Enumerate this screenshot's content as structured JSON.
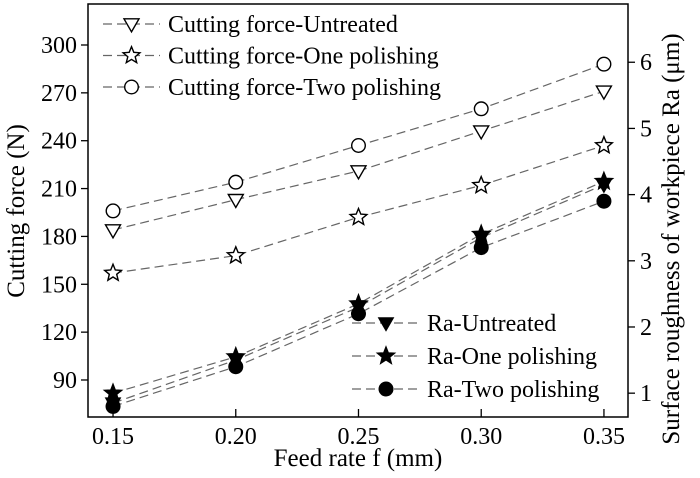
{
  "chart_data": {
    "type": "line",
    "title": "",
    "xlabel": "Feed rate f (mm)",
    "ylabel_left": "Cutting force (N)",
    "ylabel_right": "Surface roughness of workpiece Ra (μm)",
    "x": [
      0.15,
      0.2,
      0.25,
      0.3,
      0.35
    ],
    "x_tick_labels": [
      "0.15",
      "0.20",
      "0.25",
      "0.30",
      "0.35"
    ],
    "left_axis": {
      "ticks": [
        90,
        120,
        150,
        180,
        210,
        240,
        270,
        300
      ],
      "tick_labels": [
        "90",
        "120",
        "150",
        "180",
        "210",
        "240",
        "270",
        "300"
      ],
      "range": [
        66.8,
        325.7
      ]
    },
    "right_axis": {
      "ticks": [
        1,
        2,
        3,
        4,
        5,
        6
      ],
      "tick_labels": [
        "1",
        "2",
        "3",
        "4",
        "5",
        "6"
      ],
      "range": [
        0.64,
        6.88
      ]
    },
    "x_axis": {
      "range": [
        0.1398,
        0.3598
      ]
    },
    "grid": false,
    "series": [
      {
        "name": "Cutting force-Untreated",
        "axis": "left",
        "marker": "triangle-down-open",
        "values": [
          184,
          203,
          221,
          246,
          271
        ]
      },
      {
        "name": "Cutting force-One polishing",
        "axis": "left",
        "marker": "star-open",
        "values": [
          157,
          168,
          192,
          212,
          237
        ]
      },
      {
        "name": "Cutting force-Two polishing",
        "axis": "left",
        "marker": "circle-open",
        "values": [
          196,
          214,
          237,
          260,
          288
        ]
      },
      {
        "name": "Ra-Untreated",
        "axis": "right",
        "marker": "triangle-down-filled",
        "values": [
          0.85,
          1.5,
          2.3,
          3.35,
          4.15
        ]
      },
      {
        "name": "Ra-One polishing",
        "axis": "right",
        "marker": "star-filled",
        "values": [
          1.0,
          1.55,
          2.35,
          3.4,
          4.2
        ]
      },
      {
        "name": "Ra-Two polishing",
        "axis": "right",
        "marker": "circle-filled",
        "values": [
          0.8,
          1.4,
          2.2,
          3.2,
          3.9
        ]
      }
    ],
    "legend_top_left": {
      "position": "top-left",
      "items": [
        {
          "label": "Cutting force-Untreated",
          "marker": "triangle-down-open"
        },
        {
          "label": "Cutting force-One polishing",
          "marker": "star-open"
        },
        {
          "label": "Cutting force-Two polishing",
          "marker": "circle-open"
        }
      ]
    },
    "legend_bottom_right": {
      "position": "bottom-right",
      "items": [
        {
          "label": "Ra-Untreated",
          "marker": "triangle-down-filled"
        },
        {
          "label": "Ra-One polishing",
          "marker": "star-filled"
        },
        {
          "label": "Ra-Two polishing",
          "marker": "circle-filled"
        }
      ]
    },
    "colors": {
      "line": "#666666",
      "marker_stroke": "#000000",
      "marker_fill_open": "#ffffff",
      "marker_fill_solid": "#000000",
      "axis": "#000000",
      "text": "#000000",
      "background": "#ffffff"
    }
  }
}
